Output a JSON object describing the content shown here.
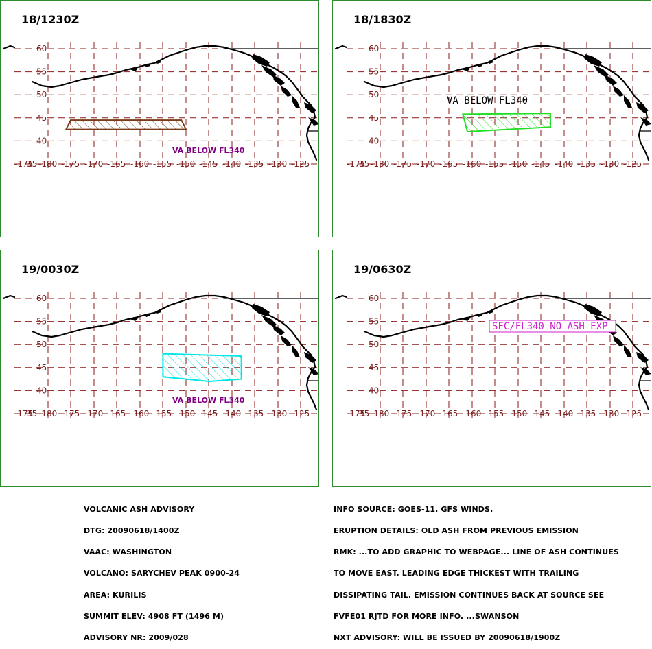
{
  "panels": [
    {
      "title": "18/1230Z",
      "label": "VA BELOW FL340",
      "label_style": "small",
      "label_color": "#800080",
      "area_color": "#7a3b1a",
      "area_lonlat": [
        [
          -175,
          44.5
        ],
        [
          -151,
          44.5
        ],
        [
          -150,
          42.5
        ],
        [
          -176,
          42.5
        ]
      ]
    },
    {
      "title": "18/1830Z",
      "label": "VA BELOW FL340",
      "label_style": "big",
      "label_color": "#000000",
      "area_color": "#22dd22",
      "area_lonlat": [
        [
          -162,
          45.8
        ],
        [
          -143,
          46
        ],
        [
          -143,
          43
        ],
        [
          -161,
          42
        ]
      ]
    },
    {
      "title": "19/0030Z",
      "label": "VA BELOW FL340",
      "label_style": "small",
      "label_color": "#800080",
      "area_color": "#00e5e5",
      "area_lonlat": [
        [
          -155,
          48
        ],
        [
          -138,
          47.5
        ],
        [
          -138,
          42.5
        ],
        [
          -145,
          42
        ],
        [
          -155,
          43
        ]
      ]
    },
    {
      "title": "19/0630Z",
      "label": "SFC/FL340 NO ASH EXP",
      "label_style": "box",
      "label_color": "#d020d0",
      "area_color": "#d020d0",
      "area_lonlat": []
    }
  ],
  "grid": {
    "lat_labels": [
      "60",
      "55",
      "50",
      "45",
      "40",
      "35"
    ],
    "lon_labels": [
      "-175",
      "-180",
      "-175",
      "-170",
      "-165",
      "-160",
      "-155",
      "-150",
      "-145",
      "-140",
      "-135",
      "-130",
      "-125"
    ]
  },
  "footer_left": [
    "VOLCANIC ASH ADVISORY",
    "DTG: 20090618/1400Z",
    "VAAC: WASHINGTON",
    "VOLCANO: SARYCHEV PEAK 0900-24",
    "AREA: KURILIS",
    "SUMMIT ELEV: 4908 FT (1496 M)",
    "ADVISORY NR: 2009/028"
  ],
  "footer_right": [
    "INFO SOURCE: GOES-11. GFS WINDS.",
    "ERUPTION DETAILS: OLD ASH FROM PREVIOUS EMISSION",
    "RMK: ...TO ADD GRAPHIC TO WEBPAGE... LINE OF ASH CONTINUES",
    "TO MOVE EAST. LEADING EDGE THICKEST WITH TRAILING",
    "DISSIPATING TAIL. EMISSION CONTINUES BACK AT SOURCE SEE",
    "FVFE01 RJTD FOR MORE INFO. ...SWANSON",
    "NXT ADVISORY: WILL BE ISSUED BY 20090618/1900Z"
  ]
}
